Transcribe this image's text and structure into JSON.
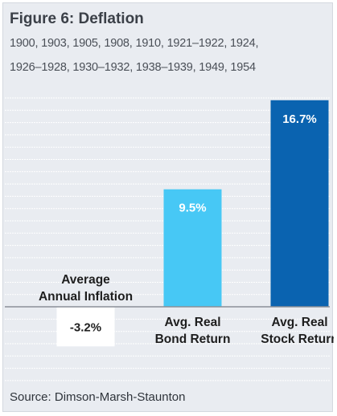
{
  "figure": {
    "title": "Figure 6: Deflation",
    "subtitle_line1": "1900, 1903, 1905, 1908, 1910, 1921–1922, 1924,",
    "subtitle_line2": "1926–1928, 1930–1932, 1938–1939, 1949, 1954",
    "source": "Source: Dimson-Marsh-Staunton"
  },
  "chart_data": {
    "type": "bar",
    "categories": [
      [
        "Average",
        "Annual Inflation"
      ],
      [
        "Avg. Real",
        "Bond Return"
      ],
      [
        "Avg. Real",
        "Stock Return"
      ]
    ],
    "values": [
      -3.2,
      9.5,
      16.7
    ],
    "data_labels": [
      "-3.2%",
      "9.5%",
      "16.7%"
    ],
    "colors": [
      "#ffffff",
      "#47c8f5",
      "#0a63b0"
    ],
    "label_colors": [
      "#1e1e1e",
      "#ffffff",
      "#ffffff"
    ],
    "title": "Figure 6: Deflation",
    "xlabel": "",
    "ylabel": "",
    "ylim": [
      -3.5,
      19
    ],
    "grid": true,
    "legend": "none"
  }
}
